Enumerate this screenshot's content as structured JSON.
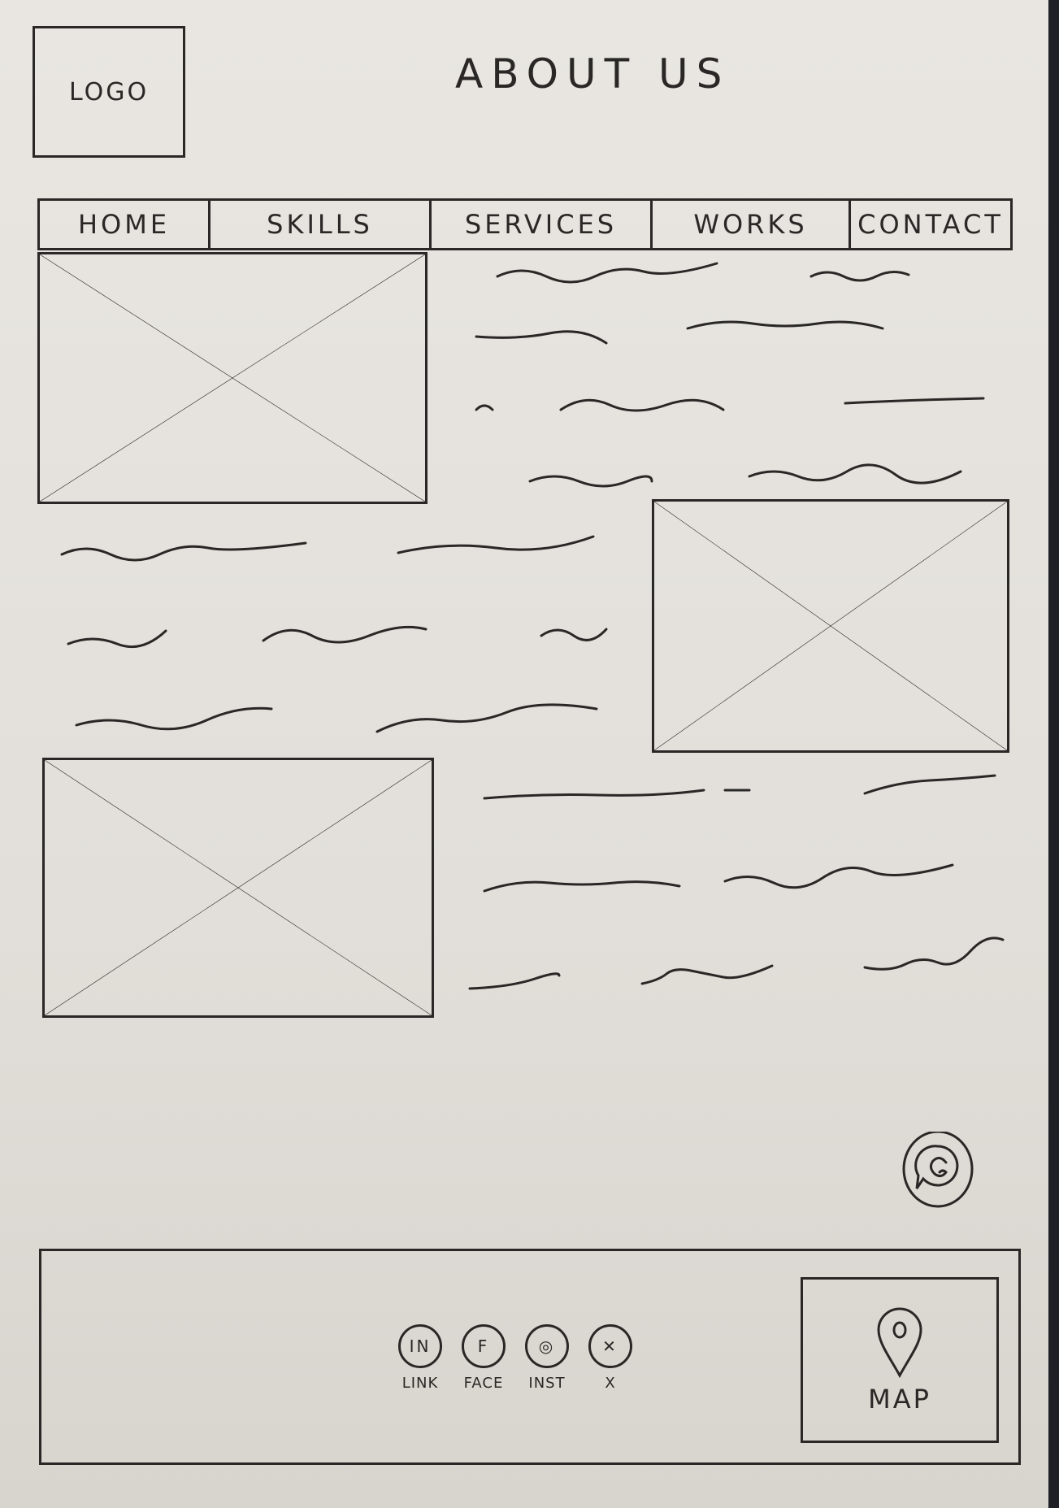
{
  "header": {
    "logo_label": "LOGO",
    "title": "ABOUT US"
  },
  "nav": {
    "items": [
      {
        "label": "HOME"
      },
      {
        "label": "SKILLS"
      },
      {
        "label": "SERVICES"
      },
      {
        "label": "WORKS"
      },
      {
        "label": "CONTACT"
      }
    ]
  },
  "content": {
    "image_placeholders": [
      "image-placeholder-1",
      "image-placeholder-2",
      "image-placeholder-3"
    ],
    "text_placeholder_icon": "squiggle-line"
  },
  "chat": {
    "icon": "chat-bubble-icon"
  },
  "footer": {
    "social": [
      {
        "icon_text": "IN",
        "label": "LINK",
        "icon": "linkedin-icon"
      },
      {
        "icon_text": "F",
        "label": "FACE",
        "icon": "facebook-icon"
      },
      {
        "icon_text": "◎",
        "label": "INST",
        "icon": "instagram-icon"
      },
      {
        "icon_text": "✕",
        "label": "X",
        "icon": "x-icon"
      }
    ],
    "map_label": "MAP",
    "map_icon": "map-pin-icon"
  }
}
